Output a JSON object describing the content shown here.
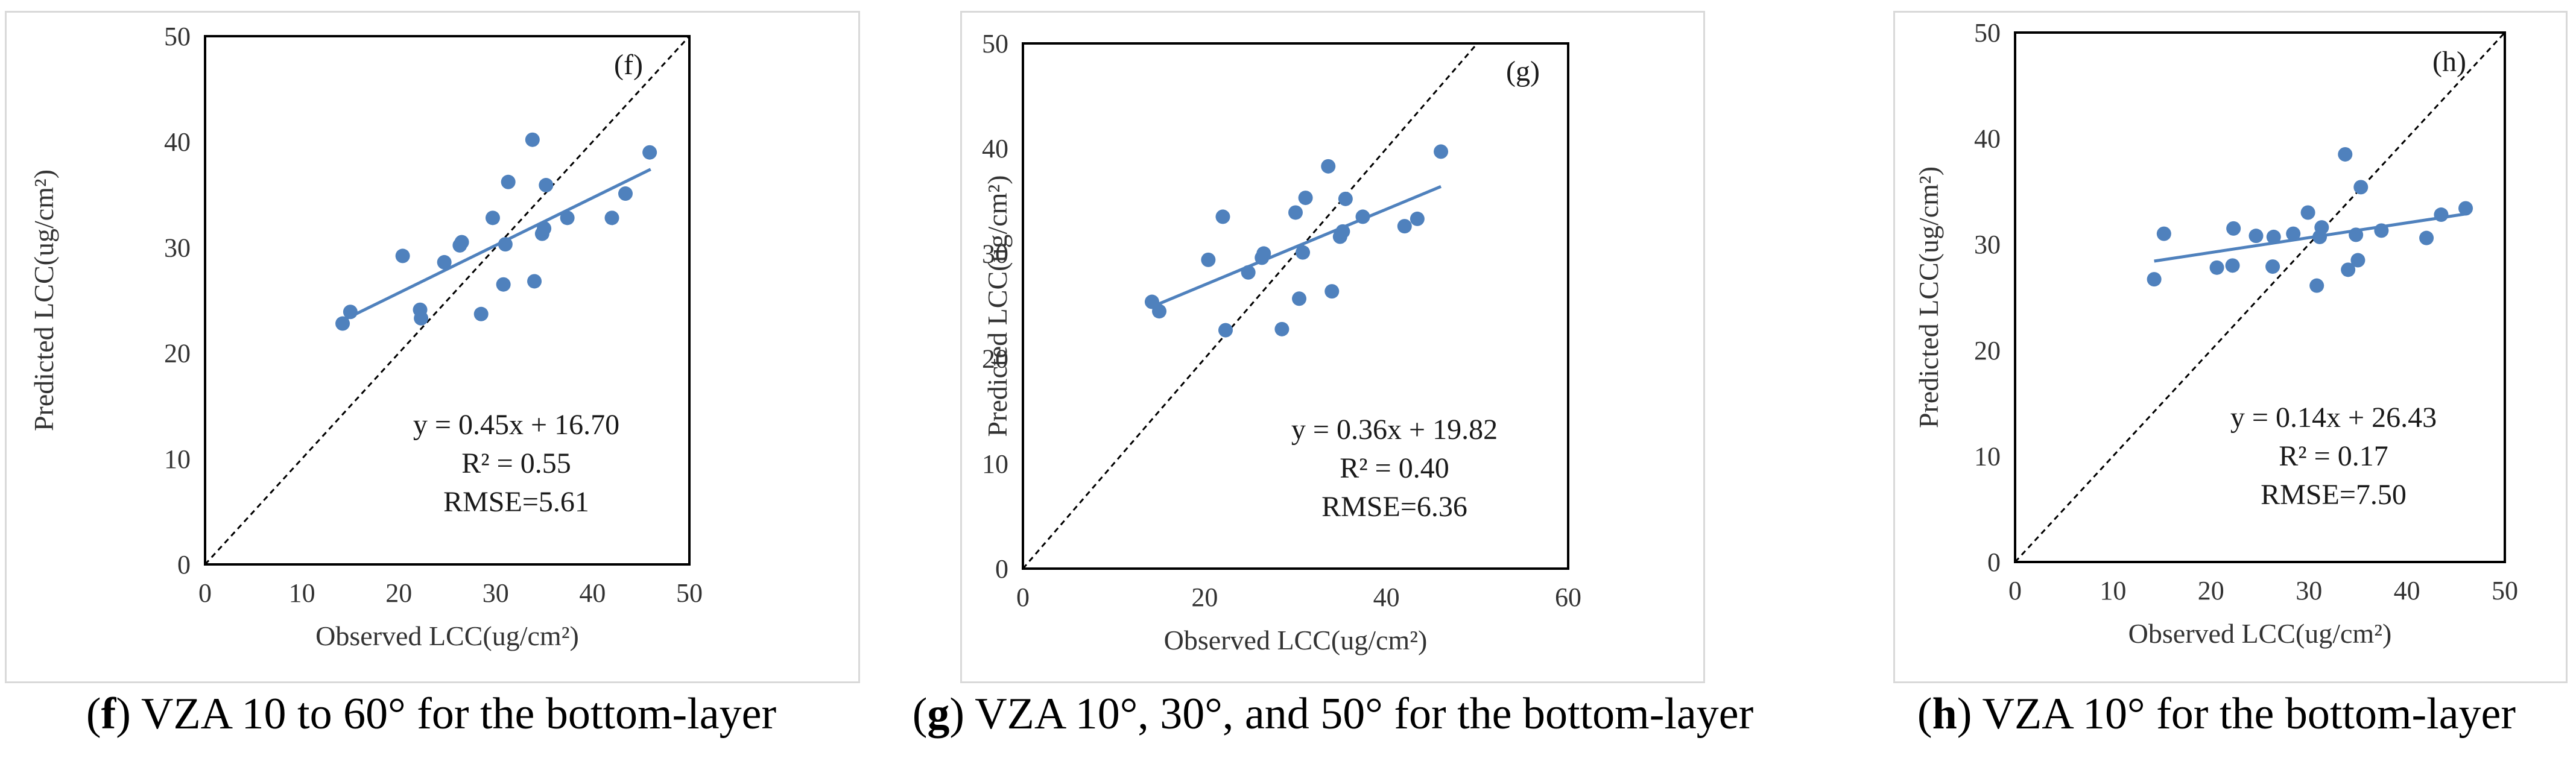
{
  "captions": [
    {
      "letter": "f",
      "text": " VZA 10 to 60° for the bottom-layer"
    },
    {
      "letter": "g",
      "text": " VZA 10°, 30°, and 50° for the bottom-layer"
    },
    {
      "letter": "h",
      "text": " VZA 10° for the bottom-layer"
    }
  ],
  "colors": {
    "points": "#4f81bd",
    "fit_line": "#4f81bd",
    "one_to_one": "#000000",
    "frame": "#d9d9d9"
  },
  "chart_data": [
    {
      "type": "scatter",
      "panel_tag": "(f)",
      "xlabel": "Observed LCC(ug/cm²)",
      "ylabel": "Predicted LCC(ug/cm²)",
      "xlim": [
        0,
        50
      ],
      "ylim": [
        0,
        50
      ],
      "x_ticks": [
        "0",
        "10",
        "20",
        "30",
        "40",
        "50"
      ],
      "y_ticks": [
        "0",
        "10",
        "20",
        "30",
        "40",
        "50"
      ],
      "x_tick_values": [
        0,
        10,
        20,
        30,
        40,
        50
      ],
      "y_tick_values": [
        0,
        10,
        20,
        30,
        40,
        50
      ],
      "equation": "y = 0.45x + 16.70",
      "r2": "R² = 0.55",
      "rmse": "RMSE=5.61",
      "fit": {
        "slope": 0.45,
        "intercept": 16.7,
        "x_range": [
          14.2,
          46.0
        ]
      },
      "one_to_one": true,
      "x": [
        14.2,
        15.0,
        20.4,
        22.2,
        22.3,
        24.7,
        26.3,
        26.5,
        28.5,
        29.7,
        30.8,
        31.0,
        31.3,
        33.8,
        34.0,
        34.8,
        35.0,
        35.2,
        37.4,
        42.0,
        43.4,
        45.9
      ],
      "y": [
        22.8,
        23.9,
        29.2,
        24.1,
        23.3,
        28.6,
        30.2,
        30.5,
        23.7,
        32.8,
        26.5,
        30.3,
        36.2,
        40.2,
        26.8,
        31.3,
        31.8,
        35.9,
        32.8,
        32.8,
        35.1,
        39.0
      ]
    },
    {
      "type": "scatter",
      "panel_tag": "(g)",
      "xlabel": "Observed LCC(ug/cm²)",
      "ylabel": "Predicted LCC(ug/cm²)",
      "xlim": [
        0,
        60
      ],
      "ylim": [
        0,
        50
      ],
      "x_ticks": [
        "0",
        "20",
        "40",
        "60"
      ],
      "y_ticks": [
        "0",
        "10",
        "20",
        "30",
        "40",
        "50"
      ],
      "x_tick_values": [
        0,
        20,
        40,
        60
      ],
      "y_tick_values": [
        0,
        10,
        20,
        30,
        40,
        50
      ],
      "equation": "y = 0.36x + 19.82",
      "r2": "R² = 0.40",
      "rmse": "RMSE=6.36",
      "fit": {
        "slope": 0.36,
        "intercept": 19.82,
        "x_range": [
          14.2,
          46.0
        ]
      },
      "one_to_one": true,
      "x": [
        14.2,
        15.0,
        20.4,
        22.0,
        22.3,
        24.8,
        26.3,
        26.5,
        28.5,
        30.0,
        30.4,
        30.8,
        31.1,
        33.6,
        34.0,
        34.9,
        35.2,
        35.5,
        37.4,
        42.0,
        43.4,
        46.0
      ],
      "y": [
        25.4,
        24.5,
        29.4,
        33.5,
        22.7,
        28.2,
        29.6,
        30.0,
        22.8,
        33.9,
        25.7,
        30.1,
        35.3,
        38.3,
        26.4,
        31.6,
        32.1,
        35.2,
        33.5,
        32.6,
        33.3,
        39.7
      ]
    },
    {
      "type": "scatter",
      "panel_tag": "(h)",
      "xlabel": "Observed LCC(ug/cm²)",
      "ylabel": "Predicted LCC(ug/cm²)",
      "xlim": [
        0,
        50
      ],
      "ylim": [
        0,
        50
      ],
      "x_ticks": [
        "0",
        "10",
        "20",
        "30",
        "40",
        "50"
      ],
      "y_ticks": [
        "0",
        "10",
        "20",
        "30",
        "40",
        "50"
      ],
      "x_tick_values": [
        0,
        10,
        20,
        30,
        40,
        50
      ],
      "y_tick_values": [
        0,
        10,
        20,
        30,
        40,
        50
      ],
      "equation": "y = 0.14x + 26.43",
      "r2": "R² = 0.17",
      "rmse": "RMSE=7.50",
      "fit": {
        "slope": 0.14,
        "intercept": 26.43,
        "x_range": [
          14.2,
          46.0
        ]
      },
      "one_to_one": true,
      "x": [
        14.2,
        15.2,
        20.6,
        22.2,
        22.3,
        24.6,
        26.3,
        26.4,
        28.4,
        29.9,
        30.8,
        31.1,
        31.3,
        33.7,
        34.0,
        34.8,
        35.0,
        35.3,
        37.4,
        42.0,
        43.5,
        46.0
      ],
      "y": [
        26.7,
        31.0,
        27.8,
        28.0,
        31.5,
        30.8,
        27.9,
        30.7,
        31.0,
        33.0,
        26.1,
        30.7,
        31.6,
        38.5,
        27.6,
        30.9,
        28.5,
        35.4,
        31.3,
        30.6,
        32.8,
        33.4
      ]
    }
  ]
}
